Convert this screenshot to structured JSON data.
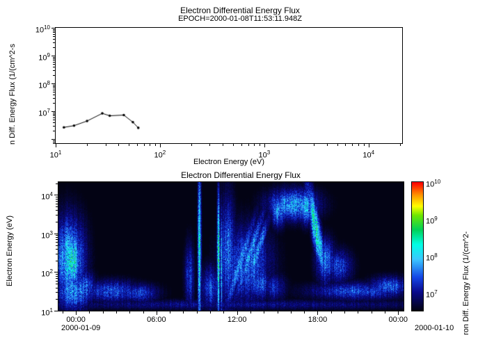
{
  "window": {
    "background": "#ffffff",
    "text_color": "#000000"
  },
  "top_panel": {
    "title": "Electron Differential Energy Flux",
    "subtitle": "EPOCH=2000-01-08T11:53:11.948Z",
    "xlabel": "Electron Energy (eV)",
    "ylabel": "n Diff. Energy Flux (1/(cm^2-s"
  },
  "bottom_panel": {
    "title": "Electron Differential Energy Flux",
    "ylabel": "Electron Energy (eV)",
    "right_label": "ron Diff. Energy Flux (1/(cm^2-",
    "date_left": "2000-01-09",
    "date_right": "2000-01-10"
  },
  "chart_data": [
    {
      "type": "line",
      "title": "Electron Differential Energy Flux",
      "subtitle": "EPOCH=2000-01-08T11:53:11.948Z",
      "xlabel": "Electron Energy (eV)",
      "ylabel": "n Diff. Energy Flux (1/(cm^2-s",
      "xscale": "log",
      "yscale": "log",
      "xlim": [
        10,
        21000
      ],
      "ylim": [
        700000,
        10000000000
      ],
      "x_tick_exponents": [
        1,
        2,
        3,
        4
      ],
      "y_tick_exponents": [
        7,
        8,
        9,
        10
      ],
      "x_eV": [
        12,
        15,
        20,
        28,
        33,
        45,
        55,
        62
      ],
      "y_flux": [
        2600000,
        3000000,
        4400000,
        8300000,
        6800000,
        7200000,
        4000000,
        2500000
      ],
      "line_color": "#000000",
      "marker": "point"
    },
    {
      "type": "heatmap",
      "title": "Electron Differential Energy Flux",
      "ylabel": "Electron Energy (eV)",
      "colorbar_label": "ron Diff. Energy Flux (1/(cm^2-",
      "x_date_labels": [
        "2000-01-09",
        "2000-01-10"
      ],
      "x_time_ticks": [
        {
          "label": "00:00",
          "t": 0
        },
        {
          "label": "06:00",
          "t": 6
        },
        {
          "label": "12:00",
          "t": 12
        },
        {
          "label": "18:00",
          "t": 18
        },
        {
          "label": "00:00",
          "t": 24
        }
      ],
      "y_tick_exponents": [
        1,
        2,
        3,
        4
      ],
      "colorbar_tick_exponents": [
        7,
        8,
        9,
        10
      ],
      "t_range": [
        -1.3,
        24.4
      ],
      "log_e_range": [
        1.0,
        4.33
      ],
      "clim_log": [
        6.5,
        10
      ],
      "floor": 6.45,
      "background": "#000000",
      "colormap_stops": [
        [
          6.5,
          3,
          3,
          20
        ],
        [
          7.0,
          10,
          10,
          140
        ],
        [
          7.4,
          20,
          70,
          230
        ],
        [
          7.9,
          60,
          200,
          255
        ],
        [
          8.3,
          0,
          255,
          230
        ],
        [
          8.7,
          0,
          210,
          90
        ],
        [
          9.1,
          110,
          230,
          0
        ],
        [
          9.35,
          255,
          255,
          0
        ],
        [
          9.65,
          255,
          150,
          0
        ],
        [
          10.0,
          255,
          0,
          0
        ]
      ],
      "features": [
        {
          "t0": -0.5,
          "dt": 0.8,
          "e0": 2.35,
          "de": 0.75,
          "amp": 8.0
        },
        {
          "t0": -0.3,
          "dt": 0.45,
          "e0": 2.3,
          "de": 0.5,
          "amp": 8.5
        },
        {
          "t0": -0.2,
          "dt": 0.9,
          "e0": 1.5,
          "de": 0.35,
          "amp": 7.8
        },
        {
          "t0": 0.7,
          "dt": 0.5,
          "e0": 1.6,
          "de": 0.3,
          "amp": 7.5
        },
        {
          "t0": 2.6,
          "dt": 1.5,
          "e0": 1.5,
          "de": 0.2,
          "amp": 7.45
        },
        {
          "t0": 4.6,
          "dt": 1.1,
          "e0": 1.45,
          "de": 0.17,
          "amp": 7.35
        },
        {
          "t0": 8.45,
          "dt": 0.25,
          "e0": 1.9,
          "de": 0.6,
          "amp": 7.3
        },
        {
          "t0": 9.2,
          "dt": 0.09,
          "e0": 2.6,
          "de": 1.5,
          "amp": 8.3
        },
        {
          "t0": 10.0,
          "dt": 0.5,
          "e0": 1.6,
          "de": 0.4,
          "amp": 7.4
        },
        {
          "t0": 10.62,
          "dt": 0.07,
          "e0": 2.4,
          "de": 1.2,
          "amp": 8.8
        },
        {
          "t0": 10.85,
          "dt": 0.06,
          "e0": 2.2,
          "de": 1.0,
          "amp": 7.9
        },
        {
          "t0": 11.3,
          "dt": 0.4,
          "e0": 2.5,
          "de": 1.0,
          "amp": 7.6
        },
        {
          "t0": 12.7,
          "dt": 1.3,
          "e0": 2.2,
          "de": 0.7,
          "amp": 7.5
        },
        {
          "t0": 12.2,
          "dt": 0.25,
          "e0": 2.2,
          "de": 0.8,
          "slope": 0.9,
          "amp": 7.8
        },
        {
          "t0": 12.9,
          "dt": 0.22,
          "e0": 2.4,
          "de": 0.8,
          "slope": 0.9,
          "amp": 7.8
        },
        {
          "t0": 13.5,
          "dt": 0.22,
          "e0": 2.5,
          "de": 0.7,
          "slope": 0.9,
          "amp": 7.7
        },
        {
          "t0": 13.7,
          "dt": 0.7,
          "e0": 1.7,
          "de": 0.3,
          "amp": 7.4
        },
        {
          "t0": 14.7,
          "dt": 0.7,
          "e0": 1.6,
          "de": 0.25,
          "amp": 7.2
        },
        {
          "t0": 16.2,
          "dt": 1.3,
          "e0": 3.75,
          "de": 0.28,
          "amp": 7.9
        },
        {
          "t0": 15.1,
          "dt": 0.35,
          "e0": 3.6,
          "de": 0.3,
          "amp": 7.8
        },
        {
          "t0": 17.2,
          "dt": 0.4,
          "e0": 3.7,
          "de": 0.3,
          "amp": 8.0
        },
        {
          "t0": 17.9,
          "dt": 0.25,
          "e0": 3.1,
          "de": 0.85,
          "slope": -0.5,
          "amp": 8.4
        },
        {
          "t0": 18.6,
          "dt": 0.5,
          "e0": 2.3,
          "de": 0.4,
          "amp": 7.6
        },
        {
          "t0": 19.6,
          "dt": 0.7,
          "e0": 2.15,
          "de": 0.3,
          "amp": 7.35
        },
        {
          "t0": 21.0,
          "dt": 2.6,
          "e0": 1.5,
          "de": 0.16,
          "amp": 7.4
        },
        {
          "t0": 23.4,
          "dt": 1.1,
          "e0": 1.62,
          "de": 0.18,
          "amp": 7.5
        },
        {
          "t0": 11.5,
          "dt": 12.9,
          "e0": 1.15,
          "de": 0.09,
          "amp": 7.0
        }
      ]
    }
  ]
}
